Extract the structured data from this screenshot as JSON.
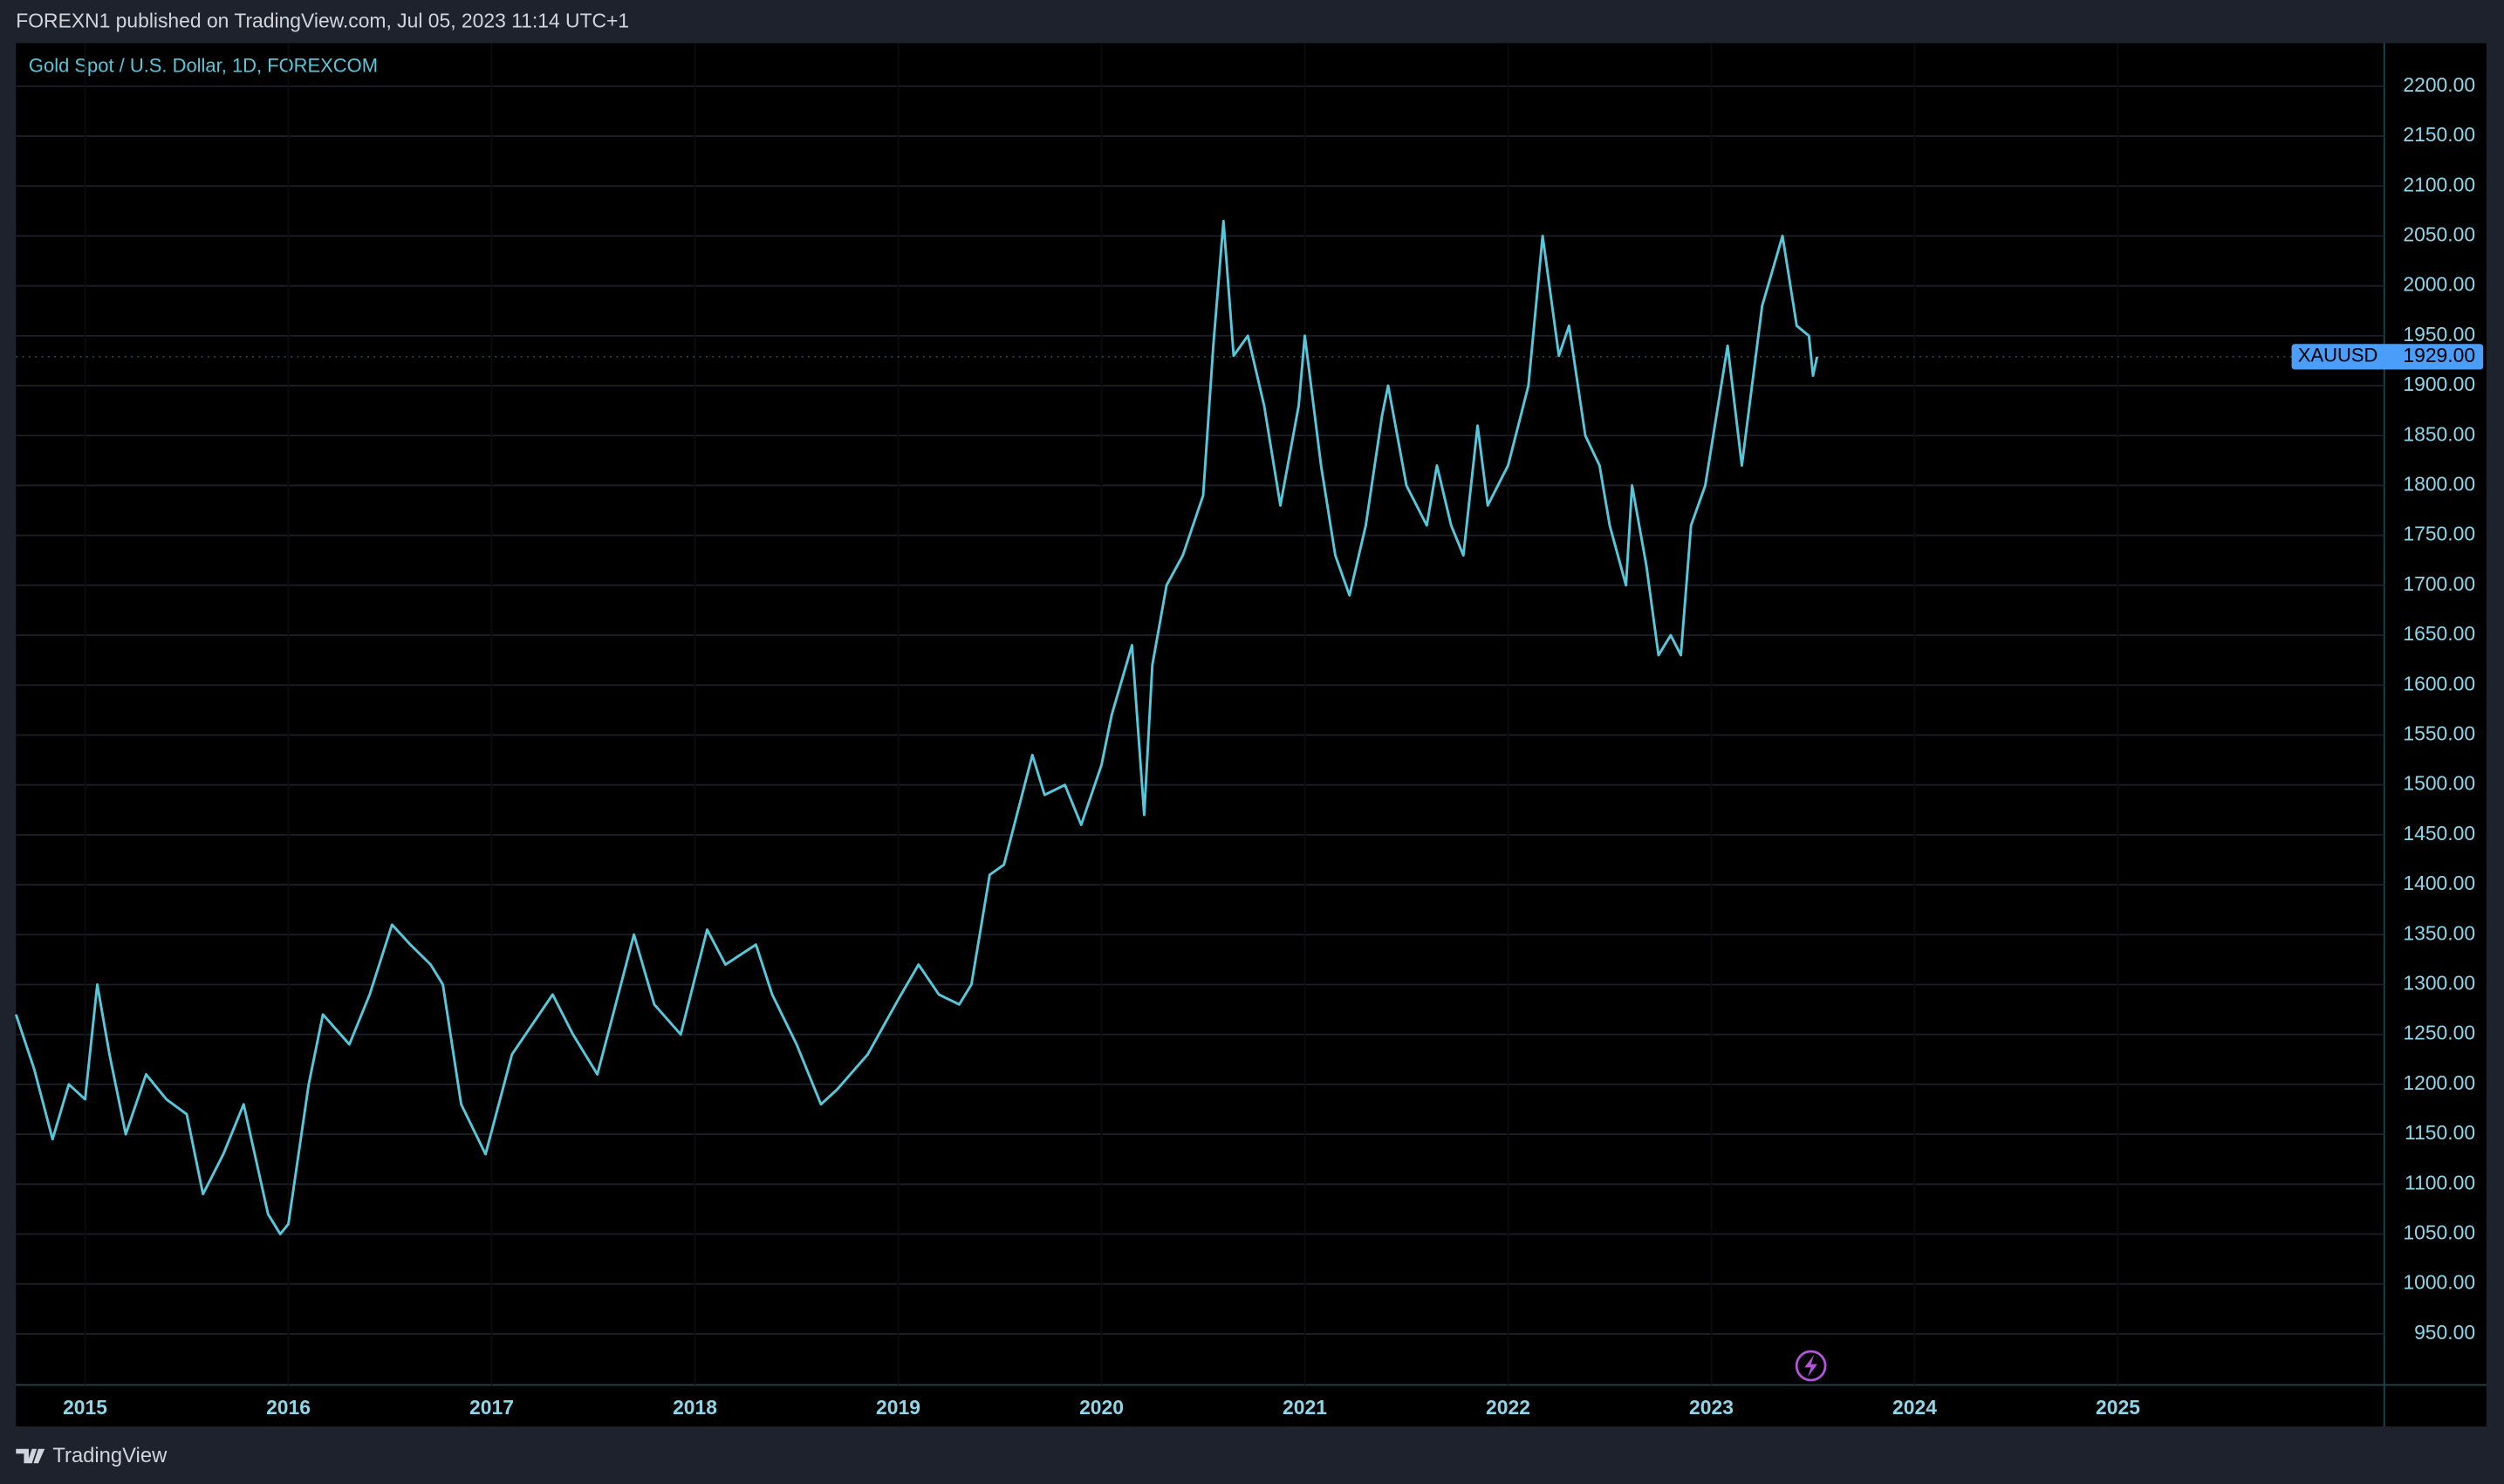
{
  "header": {
    "published": "FOREXN1 published on TradingView.com, Jul 05, 2023 11:14 UTC+1"
  },
  "footer": {
    "brand": "TradingView"
  },
  "chart_data": {
    "type": "line",
    "title": "Gold Spot / U.S. Dollar, 1D, FOREXCOM",
    "xlim": [
      2014.66,
      2026.31
    ],
    "ylim": [
      898.8,
      2243.2
    ],
    "xticks": [
      2015,
      2016,
      2017,
      2018,
      2019,
      2020,
      2021,
      2022,
      2023,
      2024,
      2025
    ],
    "yticks": [
      {
        "value": 950,
        "label": "950.00"
      },
      {
        "value": 1000,
        "label": "1000.00"
      },
      {
        "value": 1050,
        "label": "1050.00"
      },
      {
        "value": 1100,
        "label": "1100.00"
      },
      {
        "value": 1150,
        "label": "1150.00"
      },
      {
        "value": 1200,
        "label": "1200.00"
      },
      {
        "value": 1250,
        "label": "1250.00"
      },
      {
        "value": 1300,
        "label": "1300.00"
      },
      {
        "value": 1350,
        "label": "1350.00"
      },
      {
        "value": 1400,
        "label": "1400.00"
      },
      {
        "value": 1450,
        "label": "1450.00"
      },
      {
        "value": 1500,
        "label": "1500.00"
      },
      {
        "value": 1550,
        "label": "1550.00"
      },
      {
        "value": 1600,
        "label": "1600.00"
      },
      {
        "value": 1650,
        "label": "1650.00"
      },
      {
        "value": 1700,
        "label": "1700.00"
      },
      {
        "value": 1750,
        "label": "1750.00"
      },
      {
        "value": 1800,
        "label": "1800.00"
      },
      {
        "value": 1850,
        "label": "1850.00"
      },
      {
        "value": 1900,
        "label": "1900.00"
      },
      {
        "value": 1950,
        "label": "1950.00"
      },
      {
        "value": 2000,
        "label": "2000.00"
      },
      {
        "value": 2050,
        "label": "2050.00"
      },
      {
        "value": 2100,
        "label": "2100.00"
      },
      {
        "value": 2150,
        "label": "2150.00"
      },
      {
        "value": 2200,
        "label": "2200.00"
      }
    ],
    "grid": true,
    "last_price": {
      "symbol": "XAUUSD",
      "value": 1929,
      "label": "1929.00"
    },
    "series": [
      {
        "name": "XAUUSD",
        "color": "#56c8dc",
        "x": [
          2014.66,
          2014.75,
          2014.84,
          2014.92,
          2015.0,
          2015.06,
          2015.12,
          2015.2,
          2015.3,
          2015.4,
          2015.5,
          2015.58,
          2015.68,
          2015.78,
          2015.9,
          2015.96,
          2016.0,
          2016.1,
          2016.17,
          2016.3,
          2016.4,
          2016.51,
          2016.6,
          2016.7,
          2016.76,
          2016.85,
          2016.97,
          2017.1,
          2017.2,
          2017.3,
          2017.4,
          2017.52,
          2017.7,
          2017.8,
          2017.93,
          2018.06,
          2018.15,
          2018.3,
          2018.38,
          2018.5,
          2018.62,
          2018.7,
          2018.85,
          2019.0,
          2019.1,
          2019.2,
          2019.3,
          2019.36,
          2019.45,
          2019.52,
          2019.66,
          2019.72,
          2019.82,
          2019.9,
          2020.0,
          2020.05,
          2020.15,
          2020.21,
          2020.25,
          2020.32,
          2020.4,
          2020.5,
          2020.55,
          2020.6,
          2020.65,
          2020.72,
          2020.8,
          2020.88,
          2020.97,
          2021.0,
          2021.08,
          2021.15,
          2021.22,
          2021.3,
          2021.38,
          2021.41,
          2021.5,
          2021.6,
          2021.65,
          2021.72,
          2021.78,
          2021.85,
          2021.9,
          2022.0,
          2022.1,
          2022.17,
          2022.25,
          2022.3,
          2022.38,
          2022.45,
          2022.5,
          2022.58,
          2022.61,
          2022.68,
          2022.74,
          2022.8,
          2022.85,
          2022.9,
          2022.97,
          2023.08,
          2023.15,
          2023.25,
          2023.35,
          2023.42,
          2023.48,
          2023.5,
          2023.52
        ],
        "values": [
          1270,
          1215,
          1145,
          1200,
          1185,
          1300,
          1230,
          1150,
          1210,
          1185,
          1170,
          1090,
          1130,
          1180,
          1070,
          1050,
          1060,
          1200,
          1270,
          1240,
          1290,
          1360,
          1340,
          1320,
          1300,
          1180,
          1130,
          1230,
          1260,
          1290,
          1250,
          1210,
          1350,
          1280,
          1250,
          1355,
          1320,
          1340,
          1290,
          1240,
          1180,
          1195,
          1230,
          1285,
          1320,
          1290,
          1280,
          1300,
          1410,
          1420,
          1530,
          1490,
          1500,
          1460,
          1520,
          1570,
          1640,
          1470,
          1620,
          1700,
          1730,
          1790,
          1940,
          2065,
          1930,
          1950,
          1880,
          1780,
          1880,
          1950,
          1820,
          1730,
          1690,
          1760,
          1870,
          1900,
          1800,
          1760,
          1820,
          1760,
          1730,
          1860,
          1780,
          1820,
          1900,
          2050,
          1930,
          1960,
          1850,
          1820,
          1760,
          1700,
          1800,
          1720,
          1630,
          1650,
          1630,
          1760,
          1800,
          1940,
          1820,
          1980,
          2050,
          1960,
          1950,
          1910,
          1929
        ]
      }
    ]
  }
}
